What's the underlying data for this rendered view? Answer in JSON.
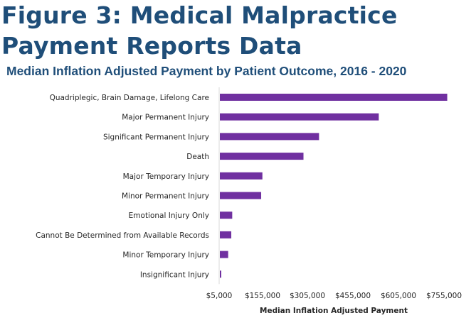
{
  "figure": {
    "title": "Figure 3: Medical Malpractice Payment Reports Data",
    "subtitle": "Median Inflation Adjusted Payment by Patient Outcome, 2016 - 2020"
  },
  "chart_data": {
    "type": "bar",
    "orientation": "horizontal",
    "title": "Median Inflation Adjusted Payment by Patient Outcome, 2016 - 2020",
    "xlabel": "Median Inflation Adjusted Payment",
    "ylabel": "",
    "categories": [
      "Quadriplegic, Brain Damage, Lifelong Care",
      "Major Permanent Injury",
      "Significant Permanent Injury",
      "Death",
      "Major Temporary Injury",
      "Minor Permanent Injury",
      "Emotional Injury Only",
      "Cannot Be Determined from Available Records",
      "Minor Temporary Injury",
      "Insignificant Injury"
    ],
    "values": [
      738000,
      518000,
      326000,
      276000,
      144000,
      140000,
      47000,
      44000,
      34000,
      7000
    ],
    "xlim": [
      5000,
      755000
    ],
    "xticks": [
      "$5,000",
      "$155,000",
      "$305,000",
      "$455,000",
      "$605,000",
      "$755,000"
    ],
    "grid": false,
    "legend": "none",
    "bar_color": "#7030a0",
    "text_color": "#262626",
    "title_color": "#1f4e79"
  }
}
